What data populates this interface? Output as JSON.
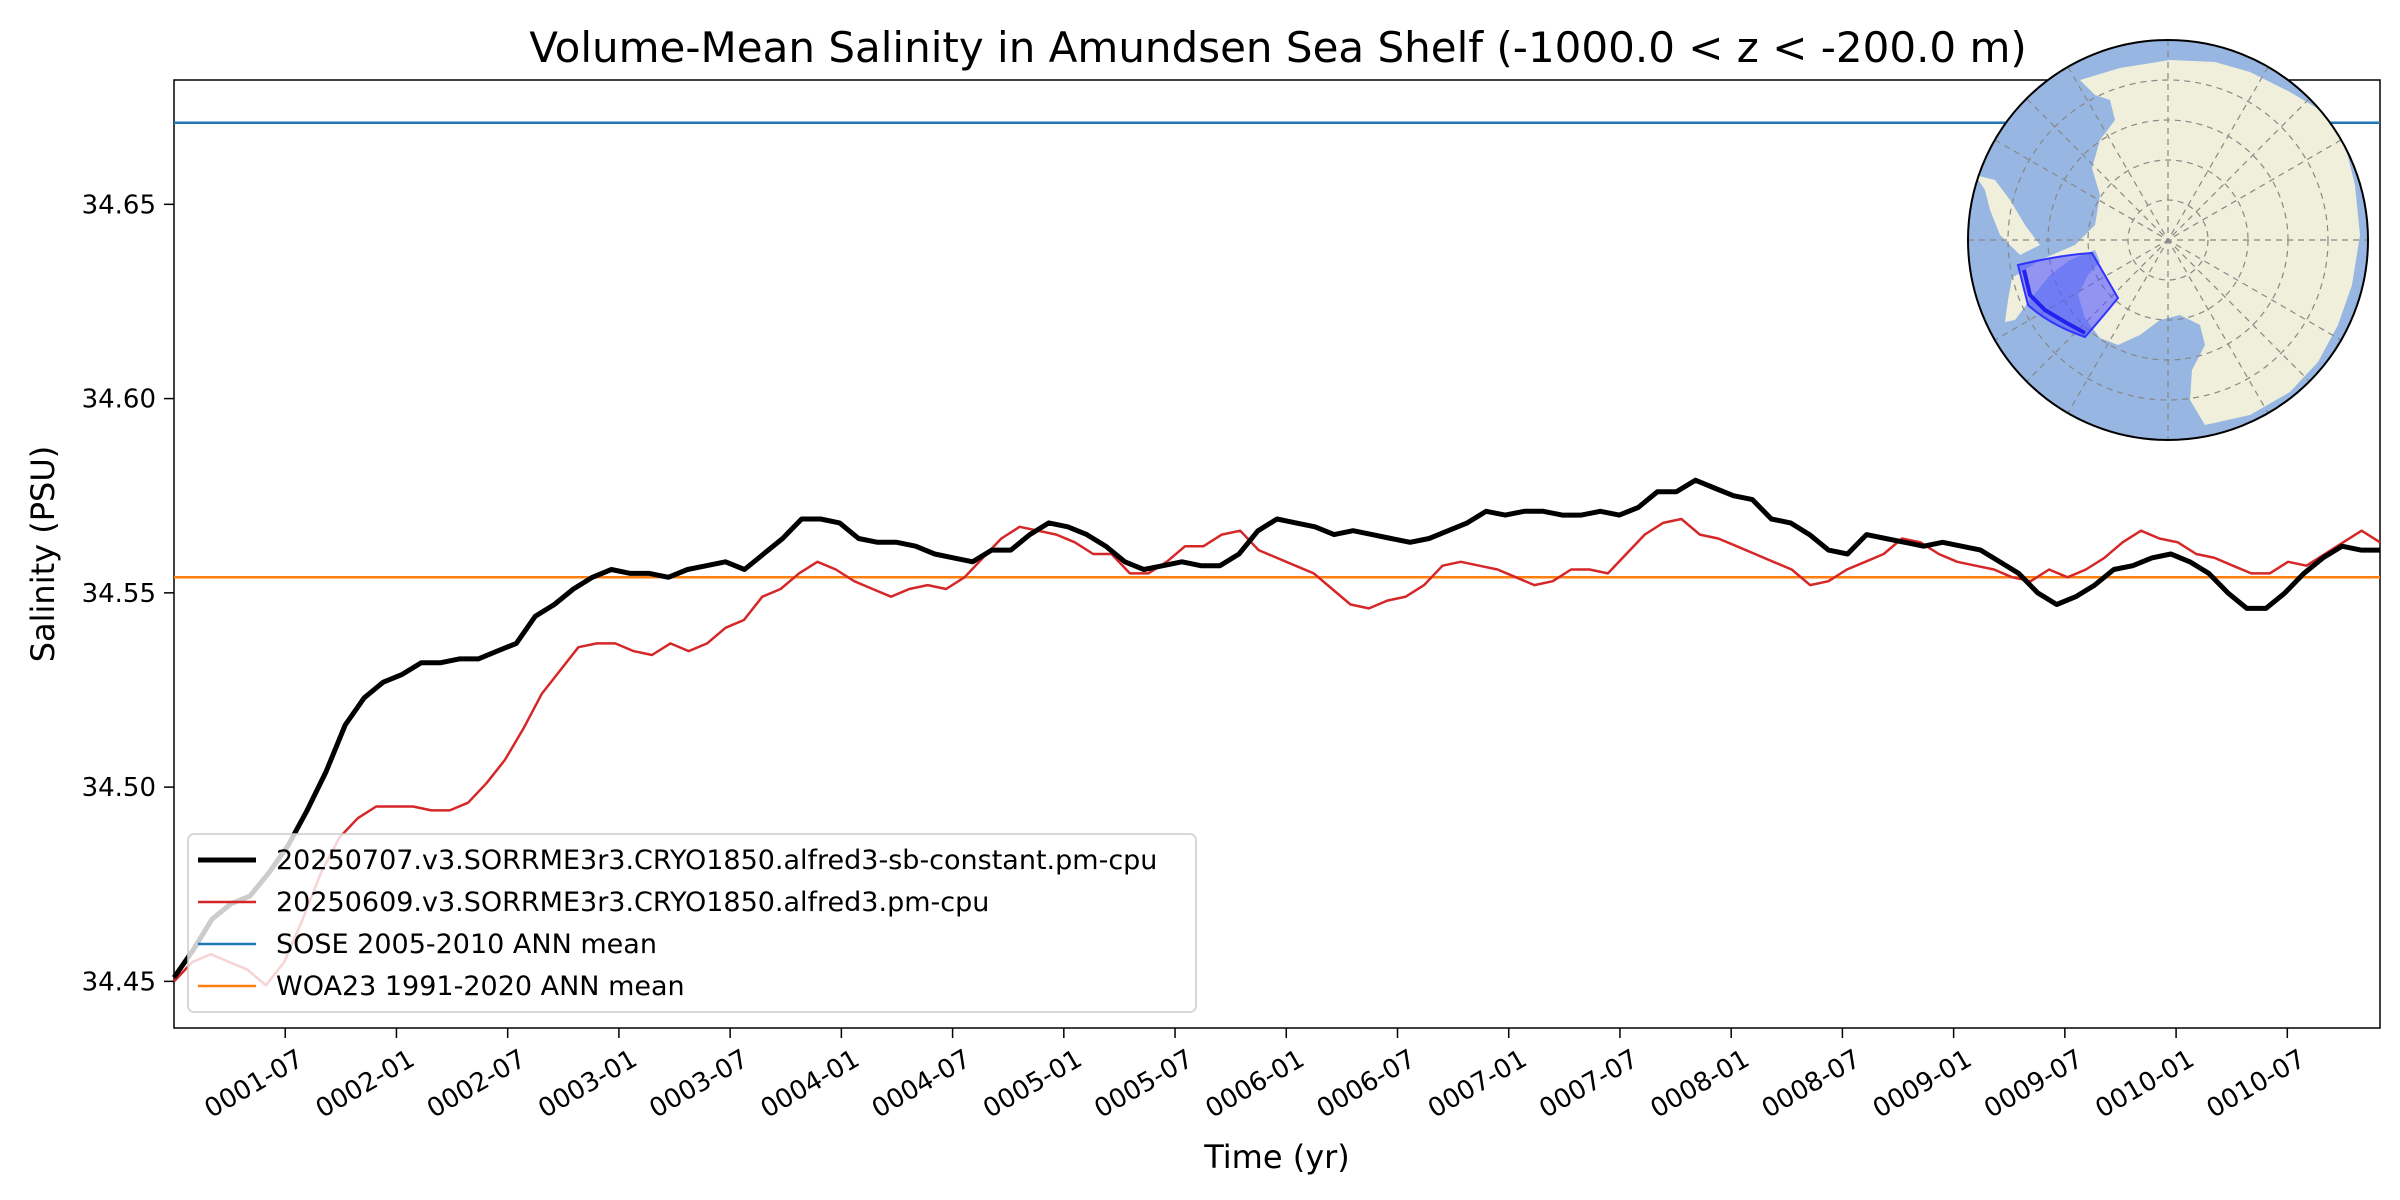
{
  "chart_data": {
    "type": "line",
    "title": "Volume-Mean Salinity in Amundsen Sea Shelf (-1000.0 < z < -200.0 m)",
    "xlabel": "Time (yr)",
    "ylabel": "Salinity (PSU)",
    "x_ticks": [
      "0001-07",
      "0002-01",
      "0002-07",
      "0003-01",
      "0003-07",
      "0004-01",
      "0004-07",
      "0005-01",
      "0005-07",
      "0006-01",
      "0006-07",
      "0007-01",
      "0007-07",
      "0008-01",
      "0008-07",
      "0009-01",
      "0009-07",
      "0010-01",
      "0010-07"
    ],
    "y_ticks": [
      "34.45",
      "34.50",
      "34.55",
      "34.60",
      "34.65"
    ],
    "ylim": [
      34.438,
      34.682
    ],
    "xlim": [
      "0001-01",
      "0010-12"
    ],
    "grid": false,
    "legend_position": "lower-left",
    "series": [
      {
        "name": "20250707.v3.SORRME3r3.CRYO1850.alfred3-sb-constant.pm-cpu",
        "color": "#000000",
        "values": [
          34.451,
          34.458,
          34.466,
          34.47,
          34.472,
          34.478,
          34.485,
          34.494,
          34.504,
          34.516,
          34.523,
          34.527,
          34.529,
          34.532,
          34.532,
          34.533,
          34.533,
          34.535,
          34.537,
          34.544,
          34.547,
          34.551,
          34.554,
          34.556,
          34.555,
          34.555,
          34.554,
          34.556,
          34.557,
          34.558,
          34.556,
          34.56,
          34.564,
          34.569,
          34.569,
          34.568,
          34.564,
          34.563,
          34.563,
          34.562,
          34.56,
          34.559,
          34.558,
          34.561,
          34.561,
          34.565,
          34.568,
          34.567,
          34.565,
          34.562,
          34.558,
          34.556,
          34.557,
          34.558,
          34.557,
          34.557,
          34.56,
          34.566,
          34.569,
          34.568,
          34.567,
          34.565,
          34.566,
          34.565,
          34.564,
          34.563,
          34.564,
          34.566,
          34.568,
          34.571,
          34.57,
          34.571,
          34.571,
          34.57,
          34.57,
          34.571,
          34.57,
          34.572,
          34.576,
          34.576,
          34.579,
          34.577,
          34.575,
          34.574,
          34.569,
          34.568,
          34.565,
          34.561,
          34.56,
          34.565,
          34.564,
          34.563,
          34.562,
          34.563,
          34.562,
          34.561,
          34.558,
          34.555,
          34.55,
          34.547,
          34.549,
          34.552,
          34.556,
          34.557,
          34.559,
          34.56,
          34.558,
          34.555,
          34.55,
          34.546,
          34.546,
          34.55,
          34.555,
          34.559,
          34.562,
          34.561,
          34.561
        ]
      },
      {
        "name": "20250609.v3.SORRME3r3.CRYO1850.alfred3.pm-cpu",
        "color": "#d62728",
        "values": [
          34.45,
          34.455,
          34.457,
          34.455,
          34.453,
          34.449,
          34.455,
          34.466,
          34.478,
          34.487,
          34.492,
          34.495,
          34.495,
          34.495,
          34.494,
          34.494,
          34.496,
          34.501,
          34.507,
          34.515,
          34.524,
          34.53,
          34.536,
          34.537,
          34.537,
          34.535,
          34.534,
          34.537,
          34.535,
          34.537,
          34.541,
          34.543,
          34.549,
          34.551,
          34.555,
          34.558,
          34.556,
          34.553,
          34.551,
          34.549,
          34.551,
          34.552,
          34.551,
          34.554,
          34.559,
          34.564,
          34.567,
          34.566,
          34.565,
          34.563,
          34.56,
          34.56,
          34.555,
          34.555,
          34.558,
          34.562,
          34.562,
          34.565,
          34.566,
          34.561,
          34.559,
          34.557,
          34.555,
          34.551,
          34.547,
          34.546,
          34.548,
          34.549,
          34.552,
          34.557,
          34.558,
          34.557,
          34.556,
          34.554,
          34.552,
          34.553,
          34.556,
          34.556,
          34.555,
          34.56,
          34.565,
          34.568,
          34.569,
          34.565,
          34.564,
          34.562,
          34.56,
          34.558,
          34.556,
          34.552,
          34.553,
          34.556,
          34.558,
          34.56,
          34.564,
          34.563,
          34.56,
          34.558,
          34.557,
          34.556,
          34.554,
          34.553,
          34.556,
          34.554,
          34.556,
          34.559,
          34.563,
          34.566,
          34.564,
          34.563,
          34.56,
          34.559,
          34.557,
          34.555,
          34.555,
          34.558,
          34.557,
          34.56,
          34.563,
          34.566,
          34.563
        ]
      },
      {
        "name": "SOSE 2005-2010 ANN mean",
        "color": "#1f77b4",
        "constant": 34.671
      },
      {
        "name": "WOA23 1991-2020 ANN mean",
        "color": "#ff7f0e",
        "constant": 34.554
      }
    ]
  },
  "inset_map": {
    "description_icon": "antarctica-polar-map-icon",
    "ocean_color": "#97b6e1",
    "land_color": "#efefdb",
    "region_color": "#5555ff"
  }
}
